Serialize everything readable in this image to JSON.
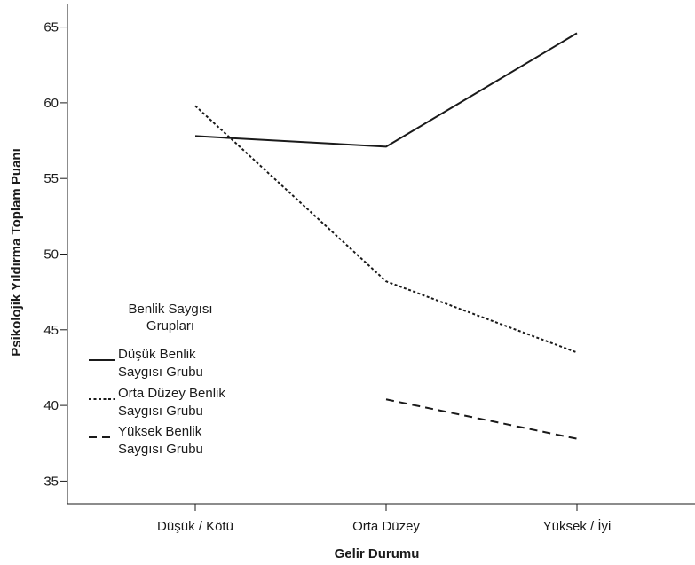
{
  "chart_data": {
    "type": "line",
    "xlabel": "Gelir Durumu",
    "ylabel": "Psikolojik Yıldırma Toplam Puanı",
    "categories": [
      "Düşük / Kötü",
      "Orta Düzey",
      "Yüksek / İyi"
    ],
    "ylim": [
      33.5,
      66.5
    ],
    "yticks": [
      35,
      40,
      45,
      50,
      55,
      60,
      65
    ],
    "grid": false,
    "legend": {
      "title": "Benlik Saygısı Grupları",
      "position": "left"
    },
    "series": [
      {
        "name": "Düşük Benlik Saygısı Grubu",
        "values": [
          57.8,
          57.1,
          64.6
        ],
        "line_style": "solid",
        "color": "#1a1a1a"
      },
      {
        "name": "Orta Düzey Benlik Saygısı Grubu",
        "values": [
          59.8,
          48.2,
          43.5
        ],
        "line_style": "dotted",
        "color": "#1a1a1a"
      },
      {
        "name": "Yüksek Benlik Saygısı Grubu",
        "values": [
          null,
          40.4,
          37.8
        ],
        "line_style": "dashed",
        "color": "#1a1a1a"
      }
    ]
  }
}
